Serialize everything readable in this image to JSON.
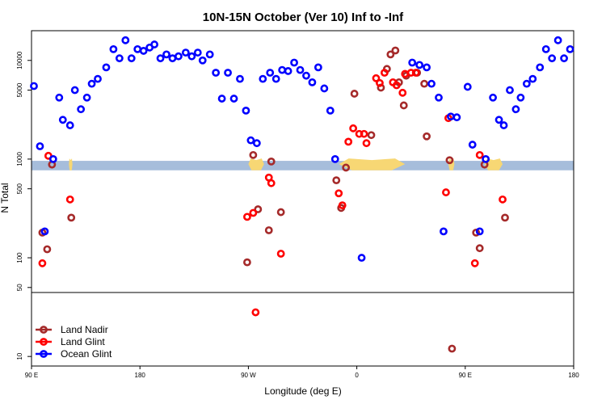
{
  "chart_data": {
    "type": "scatter",
    "title": "10N-15N October (Ver 10)   Inf to -Inf",
    "xlabel": "Longitude (deg E)",
    "ylabel": "N Total",
    "x_ticks": [
      {
        "value": 0,
        "label": "90 E"
      },
      {
        "value": 90,
        "label": "180"
      },
      {
        "value": 180,
        "label": "90 W"
      },
      {
        "value": 270,
        "label": "0"
      },
      {
        "value": 360,
        "label": "90 E"
      },
      {
        "value": 450,
        "label": "180"
      }
    ],
    "xlim": [
      0,
      450
    ],
    "y_scale": "log",
    "ylim": [
      8,
      20000
    ],
    "y_ticks": [
      10,
      50,
      100,
      500,
      1000,
      5000,
      10000
    ],
    "panel_split_value": 50,
    "land_band": {
      "ymin": 770,
      "ymax": 960,
      "ocean_color": "#a6bddb",
      "land_color": "#f7d774"
    },
    "land_spans_x": [
      [
        31,
        34
      ],
      [
        180,
        193
      ],
      [
        255,
        310
      ],
      [
        346,
        351
      ],
      [
        376,
        391
      ]
    ],
    "series": [
      {
        "name": "Land Nadir",
        "color": "#a52a2a",
        "points": [
          [
            9,
            180
          ],
          [
            13,
            122
          ],
          [
            17,
            880
          ],
          [
            33,
            255
          ],
          [
            179,
            90
          ],
          [
            184,
            1100
          ],
          [
            188,
            310
          ],
          [
            197,
            190
          ],
          [
            199,
            945
          ],
          [
            207,
            290
          ],
          [
            253,
            610
          ],
          [
            257,
            320
          ],
          [
            261,
            820
          ],
          [
            268,
            4600
          ],
          [
            282,
            1750
          ],
          [
            290,
            5300
          ],
          [
            295,
            8200
          ],
          [
            298,
            11500
          ],
          [
            302,
            12600
          ],
          [
            305,
            6000
          ],
          [
            309,
            3500
          ],
          [
            311,
            7000
          ],
          [
            320,
            7500
          ],
          [
            326,
            5800
          ],
          [
            328,
            1700
          ],
          [
            347,
            975
          ],
          [
            349,
            12
          ],
          [
            369,
            180
          ],
          [
            372,
            125
          ],
          [
            376,
            880
          ],
          [
            393,
            255
          ]
        ]
      },
      {
        "name": "Land Glint",
        "color": "#ff0000",
        "points": [
          [
            9,
            88
          ],
          [
            14,
            1080
          ],
          [
            32,
            390
          ],
          [
            179,
            260
          ],
          [
            184,
            285
          ],
          [
            186,
            28
          ],
          [
            197,
            650
          ],
          [
            199,
            570
          ],
          [
            207,
            110
          ],
          [
            255,
            450
          ],
          [
            258,
            340
          ],
          [
            263,
            1500
          ],
          [
            267,
            2050
          ],
          [
            272,
            1800
          ],
          [
            276,
            1800
          ],
          [
            278,
            1450
          ],
          [
            286,
            6600
          ],
          [
            289,
            5900
          ],
          [
            293,
            7500
          ],
          [
            300,
            6000
          ],
          [
            303,
            5600
          ],
          [
            308,
            4700
          ],
          [
            310,
            7300
          ],
          [
            315,
            7500
          ],
          [
            319,
            7500
          ],
          [
            344,
            460
          ],
          [
            346,
            2600
          ],
          [
            368,
            88
          ],
          [
            372,
            1100
          ],
          [
            391,
            390
          ]
        ]
      },
      {
        "name": "Ocean Glint",
        "color": "#0000ff",
        "points": [
          [
            2,
            5500
          ],
          [
            7,
            1350
          ],
          [
            11,
            185
          ],
          [
            18,
            1000
          ],
          [
            23,
            4200
          ],
          [
            26,
            2500
          ],
          [
            32,
            2200
          ],
          [
            36,
            5000
          ],
          [
            41,
            3200
          ],
          [
            46,
            4200
          ],
          [
            50,
            5800
          ],
          [
            55,
            6500
          ],
          [
            62,
            8500
          ],
          [
            68,
            13000
          ],
          [
            73,
            10500
          ],
          [
            78,
            16000
          ],
          [
            83,
            10500
          ],
          [
            88,
            13000
          ],
          [
            93,
            12500
          ],
          [
            98,
            13500
          ],
          [
            102,
            14500
          ],
          [
            107,
            10500
          ],
          [
            112,
            11500
          ],
          [
            117,
            10500
          ],
          [
            122,
            11000
          ],
          [
            128,
            12000
          ],
          [
            133,
            11000
          ],
          [
            138,
            12000
          ],
          [
            142,
            10000
          ],
          [
            148,
            11500
          ],
          [
            153,
            7500
          ],
          [
            158,
            4100
          ],
          [
            163,
            7500
          ],
          [
            168,
            4100
          ],
          [
            173,
            6500
          ],
          [
            178,
            3100
          ],
          [
            182,
            1550
          ],
          [
            187,
            1450
          ],
          [
            192,
            6500
          ],
          [
            198,
            7500
          ],
          [
            203,
            6500
          ],
          [
            208,
            8000
          ],
          [
            213,
            7800
          ],
          [
            218,
            9500
          ],
          [
            223,
            8000
          ],
          [
            228,
            7000
          ],
          [
            233,
            6000
          ],
          [
            238,
            8500
          ],
          [
            243,
            5200
          ],
          [
            248,
            3100
          ],
          [
            252,
            1000
          ],
          [
            274,
            100
          ],
          [
            316,
            9500
          ],
          [
            322,
            9000
          ],
          [
            328,
            8500
          ],
          [
            332,
            5800
          ],
          [
            338,
            4200
          ],
          [
            342,
            185
          ],
          [
            348,
            2700
          ],
          [
            353,
            2650
          ],
          [
            362,
            5400
          ],
          [
            366,
            1400
          ],
          [
            372,
            185
          ],
          [
            377,
            1000
          ],
          [
            383,
            4200
          ],
          [
            388,
            2500
          ],
          [
            392,
            2200
          ],
          [
            397,
            5000
          ],
          [
            402,
            3200
          ],
          [
            406,
            4200
          ],
          [
            411,
            5800
          ],
          [
            416,
            6500
          ],
          [
            422,
            8500
          ],
          [
            427,
            13000
          ],
          [
            432,
            10500
          ],
          [
            437,
            16000
          ],
          [
            442,
            10500
          ],
          [
            447,
            13000
          ]
        ]
      }
    ],
    "legend": {
      "position": "bottom-left",
      "entries": [
        "Land Nadir",
        "Land Glint",
        "Ocean Glint"
      ]
    }
  }
}
